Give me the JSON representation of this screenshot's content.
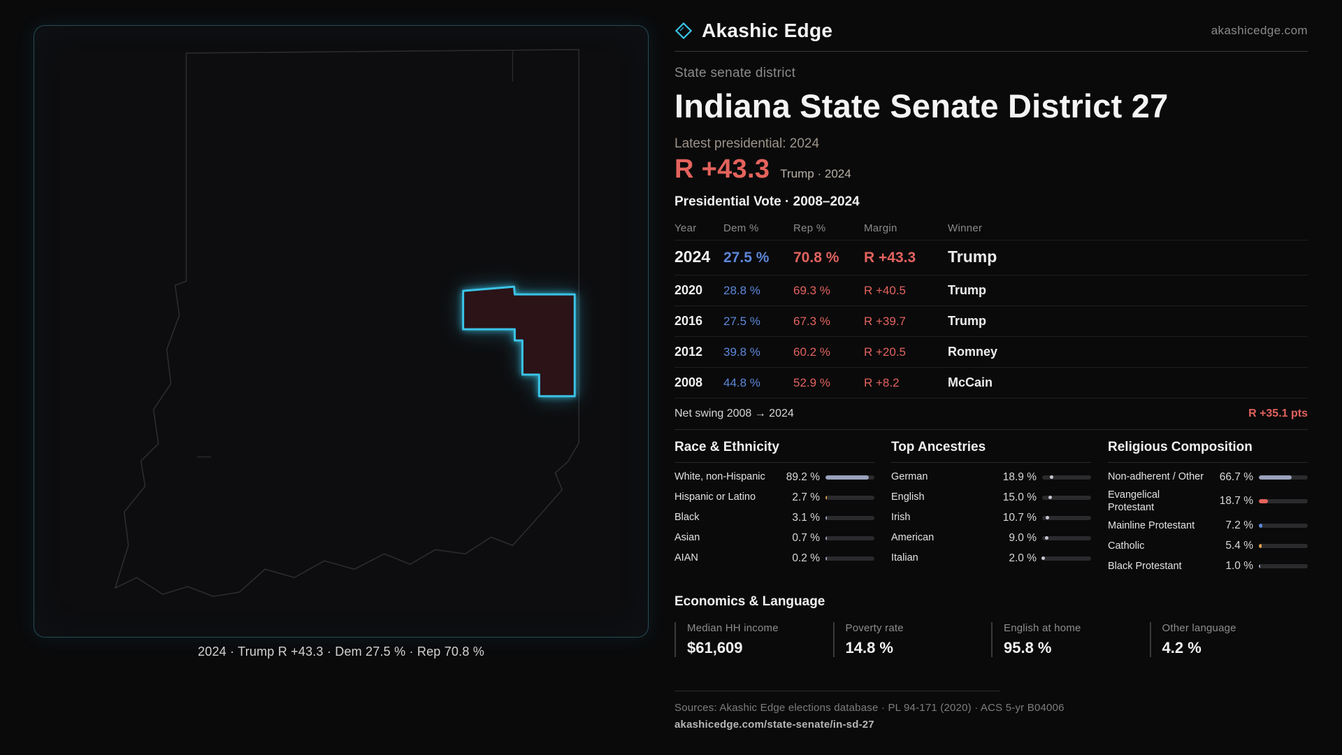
{
  "brand": {
    "name": "Akashic Edge",
    "domain": "akashicedge.com"
  },
  "map": {
    "caption": "2024 · Trump R +43.3 · Dem 27.5 % · Rep 70.8 %",
    "state_outline_color": "#2c2c2f",
    "district_fill_color": "#2b1317",
    "district_stroke_color": "#3ac3e6"
  },
  "district": {
    "type_label": "State senate district",
    "title": "Indiana State Senate District 27",
    "latest_label": "Latest presidential: 2024",
    "latest_margin": "R +43.3",
    "latest_sub": "Trump · 2024"
  },
  "vote_table": {
    "title": "Presidential Vote · 2008–2024",
    "columns": [
      "Year",
      "Dem %",
      "Rep %",
      "Margin",
      "Winner"
    ],
    "rows": [
      {
        "year": "2024",
        "dem": "27.5 %",
        "rep": "70.8 %",
        "margin": "R +43.3",
        "winner": "Trump"
      },
      {
        "year": "2020",
        "dem": "28.8 %",
        "rep": "69.3 %",
        "margin": "R +40.5",
        "winner": "Trump"
      },
      {
        "year": "2016",
        "dem": "27.5 %",
        "rep": "67.3 %",
        "margin": "R +39.7",
        "winner": "Trump"
      },
      {
        "year": "2012",
        "dem": "39.8 %",
        "rep": "60.2 %",
        "margin": "R +20.5",
        "winner": "Romney"
      },
      {
        "year": "2008",
        "dem": "44.8 %",
        "rep": "52.9 %",
        "margin": "R +8.2",
        "winner": "McCain"
      }
    ],
    "net_swing_label": "Net swing 2008 → 2024",
    "net_swing_value": "R +35.1 pts"
  },
  "demographics": {
    "race": {
      "title": "Race & Ethnicity",
      "rows": [
        {
          "label": "White, non-Hispanic",
          "value": "89.2 %",
          "pct": 89.2,
          "color": "#9aa3bd"
        },
        {
          "label": "Hispanic or Latino",
          "value": "2.7 %",
          "pct": 2.7,
          "color": "#e0a24a"
        },
        {
          "label": "Black",
          "value": "3.1 %",
          "pct": 3.1,
          "color": "#9aa3bd"
        },
        {
          "label": "Asian",
          "value": "0.7 %",
          "pct": 0.7,
          "color": "#9aa3bd"
        },
        {
          "label": "AIAN",
          "value": "0.2 %",
          "pct": 0.2,
          "color": "#9aa3bd"
        }
      ]
    },
    "ancestries": {
      "title": "Top Ancestries",
      "rows": [
        {
          "label": "German",
          "value": "18.9 %",
          "pct": 18.9,
          "color": "#c6c9d2"
        },
        {
          "label": "English",
          "value": "15.0 %",
          "pct": 15.0,
          "color": "#c6c9d2"
        },
        {
          "label": "Irish",
          "value": "10.7 %",
          "pct": 10.7,
          "color": "#c6c9d2"
        },
        {
          "label": "American",
          "value": "9.0 %",
          "pct": 9.0,
          "color": "#c6c9d2"
        },
        {
          "label": "Italian",
          "value": "2.0 %",
          "pct": 2.0,
          "color": "#c6c9d2"
        }
      ]
    },
    "religion": {
      "title": "Religious Composition",
      "rows": [
        {
          "label": "Non-adherent / Other",
          "value": "66.7 %",
          "pct": 66.7,
          "color": "#9aa3bd"
        },
        {
          "label": "Evangelical Protestant",
          "value": "18.7 %",
          "pct": 18.7,
          "color": "#e4635c"
        },
        {
          "label": "Mainline Protestant",
          "value": "7.2 %",
          "pct": 7.2,
          "color": "#5d87d8"
        },
        {
          "label": "Catholic",
          "value": "5.4 %",
          "pct": 5.4,
          "color": "#e0a24a"
        },
        {
          "label": "Black Protestant",
          "value": "1.0 %",
          "pct": 1.0,
          "color": "#9aa3bd"
        }
      ]
    }
  },
  "economics": {
    "title": "Economics & Language",
    "stats": [
      {
        "label": "Median HH income",
        "value": "$61,609"
      },
      {
        "label": "Poverty rate",
        "value": "14.8 %"
      },
      {
        "label": "English at home",
        "value": "95.8 %"
      },
      {
        "label": "Other language",
        "value": "4.2 %"
      }
    ]
  },
  "footer": {
    "sources": "Sources: Akashic Edge elections database · PL 94-171 (2020) · ACS 5-yr B04006",
    "permalink": "akashicedge.com/state-senate/in-sd-27"
  }
}
